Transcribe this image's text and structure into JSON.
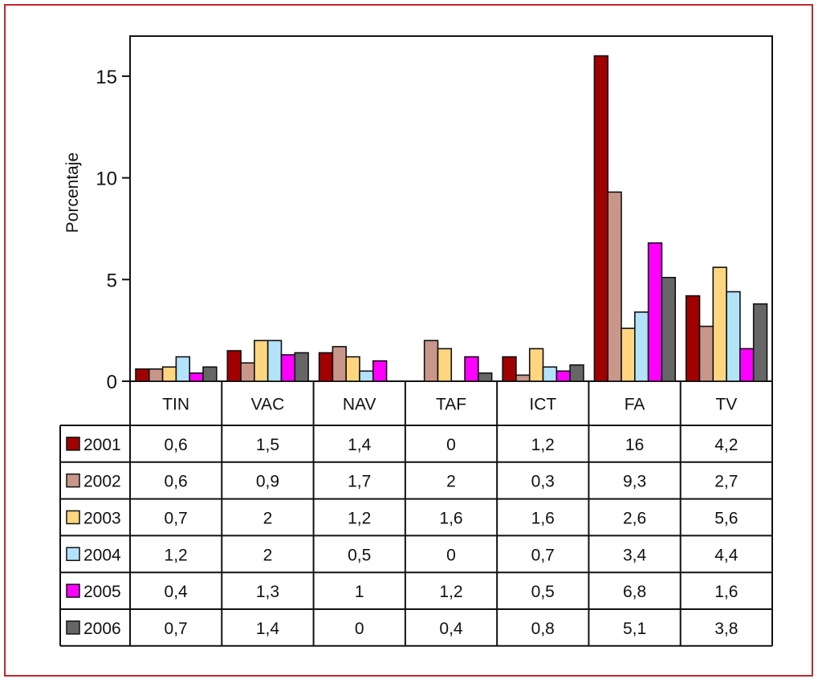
{
  "chart_data": {
    "type": "bar",
    "title": "",
    "xlabel": "",
    "ylabel": "Porcentaje",
    "ylim": [
      0,
      17
    ],
    "yticks": [
      0,
      5,
      10,
      15
    ],
    "ytick_labels": [
      "0",
      "5",
      "10",
      "15"
    ],
    "grid": false,
    "legend_placement": "data-table-below",
    "categories": [
      "TIN",
      "VAC",
      "NAV",
      "TAF",
      "ICT",
      "FA",
      "TV"
    ],
    "series": [
      {
        "name": "2001",
        "color": "#a00000",
        "values": [
          0.6,
          1.5,
          1.4,
          0,
          1.2,
          16,
          4.2
        ],
        "labels": [
          "0,6",
          "1,5",
          "1,4",
          "0",
          "1,2",
          "16",
          "4,2"
        ]
      },
      {
        "name": "2002",
        "color": "#c9968a",
        "values": [
          0.6,
          0.9,
          1.7,
          2,
          0.3,
          9.3,
          2.7
        ],
        "labels": [
          "0,6",
          "0,9",
          "1,7",
          "2",
          "0,3",
          "9,3",
          "2,7"
        ]
      },
      {
        "name": "2003",
        "color": "#ffd67f",
        "values": [
          0.7,
          2,
          1.2,
          1.6,
          1.6,
          2.6,
          5.6
        ],
        "labels": [
          "0,7",
          "2",
          "1,2",
          "1,6",
          "1,6",
          "2,6",
          "5,6"
        ]
      },
      {
        "name": "2004",
        "color": "#b3e3fb",
        "values": [
          1.2,
          2,
          0.5,
          0,
          0.7,
          3.4,
          4.4
        ],
        "labels": [
          "1,2",
          "2",
          "0,5",
          "0",
          "0,7",
          "3,4",
          "4,4"
        ]
      },
      {
        "name": "2005",
        "color": "#ff00ff",
        "values": [
          0.4,
          1.3,
          1,
          1.2,
          0.5,
          6.8,
          1.6
        ],
        "labels": [
          "0,4",
          "1,3",
          "1",
          "1,2",
          "0,5",
          "6,8",
          "1,6"
        ]
      },
      {
        "name": "2006",
        "color": "#666666",
        "values": [
          0.7,
          1.4,
          0,
          0.4,
          0.8,
          5.1,
          3.8
        ],
        "labels": [
          "0,7",
          "1,4",
          "0",
          "0,4",
          "0,8",
          "5,1",
          "3,8"
        ]
      }
    ]
  }
}
